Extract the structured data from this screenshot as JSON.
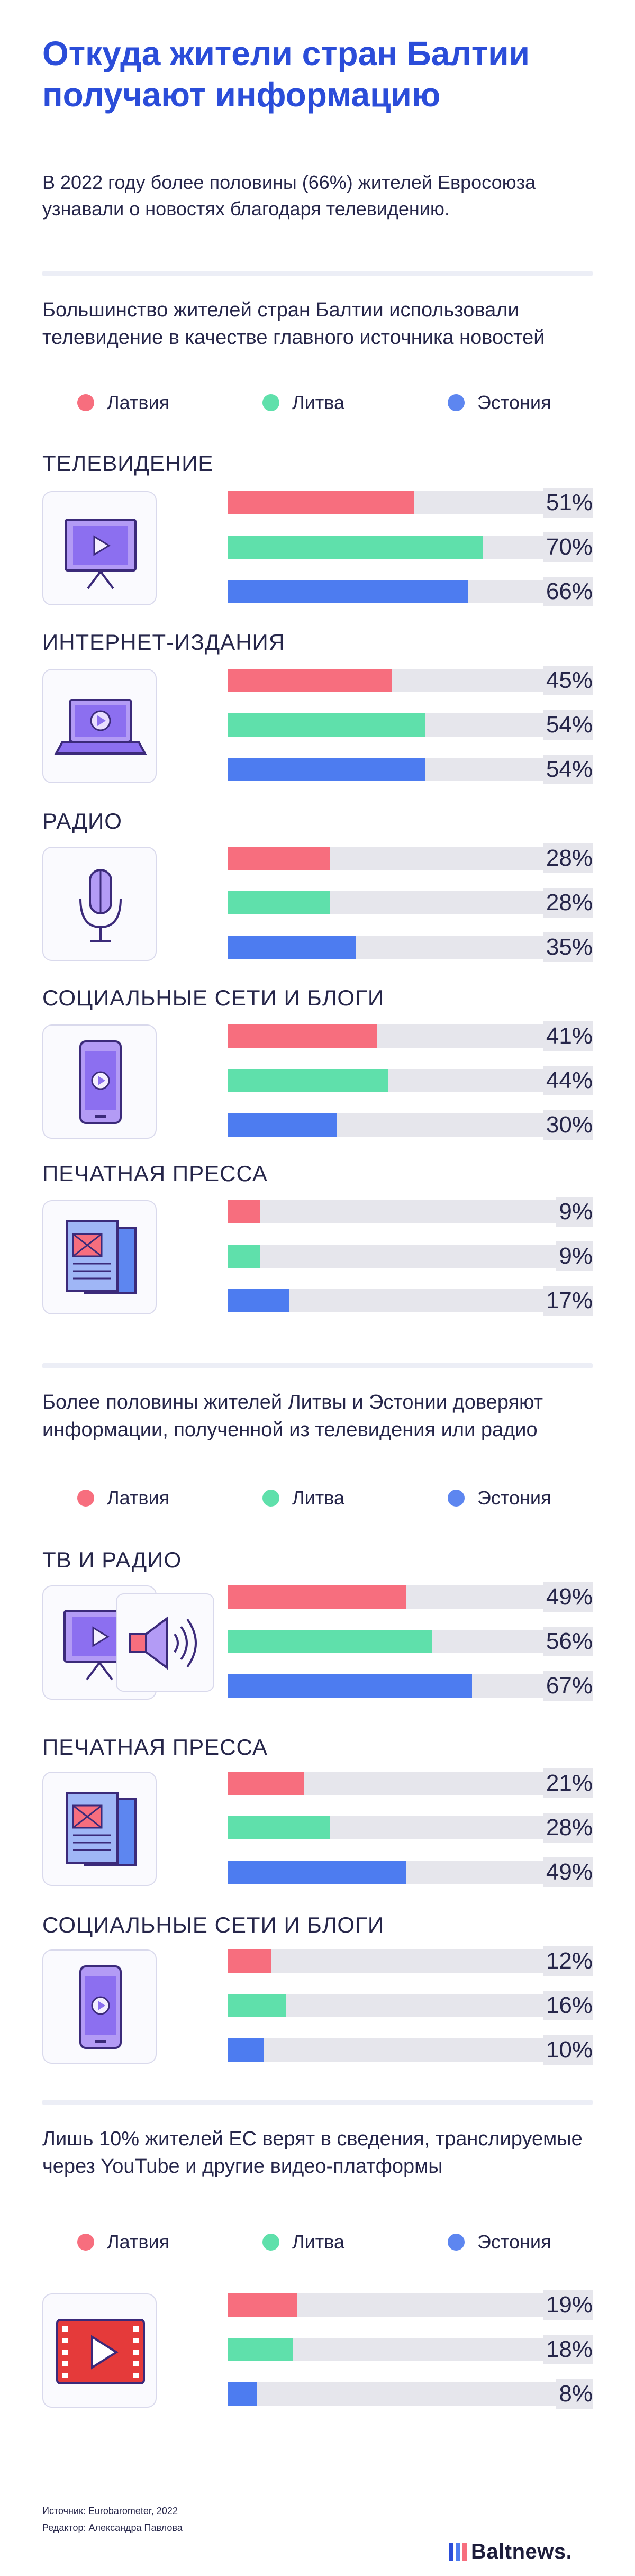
{
  "title": "Откуда жители стран Балтии получают информацию",
  "lead": "В 2022 году более половины (66%) жителей Евросоюза узнавали о новостях благодаря телевидению.",
  "legend": {
    "latvia": "Латвия",
    "lithuania": "Литва",
    "estonia": "Эстония"
  },
  "colors": {
    "latvia": "#f76e7e",
    "lithuania": "#5fe0ab",
    "estonia": "#4d7cf0",
    "title": "#2b4dd9"
  },
  "sections": [
    {
      "heading": "Большинство жителей стран Балтии использовали телевидение в качестве главного источника новостей"
    },
    {
      "heading": "Более половины жителей Литвы и Эстонии доверяют информации, полученной из телевидения или радио"
    },
    {
      "heading": "Лишь 10% жителей ЕС верят в сведения, транслируемые через YouTube и другие видео-платформы"
    }
  ],
  "chart_data": [
    {
      "type": "bar",
      "title": "Большинство жителей стран Балтии использовали телевидение в качестве главного источника новостей",
      "categories": [
        "ТЕЛЕВИДЕНИЕ",
        "ИНТЕРНЕТ-ИЗДАНИЯ",
        "РАДИО",
        "СОЦИАЛЬНЫЕ СЕТИ И БЛОГИ",
        "ПЕЧАТНАЯ ПРЕССА"
      ],
      "series": [
        {
          "name": "Латвия",
          "values": [
            51,
            45,
            28,
            41,
            9
          ]
        },
        {
          "name": "Литва",
          "values": [
            70,
            54,
            28,
            44,
            9
          ]
        },
        {
          "name": "Эстония",
          "values": [
            66,
            54,
            35,
            30,
            17
          ]
        }
      ],
      "unit": "%",
      "xlim": [
        0,
        100
      ]
    },
    {
      "type": "bar",
      "title": "Более половины жителей Литвы и Эстонии доверяют информации, полученной из телевидения или радио",
      "categories": [
        "ТВ И РАДИО",
        "ПЕЧАТНАЯ ПРЕССА",
        "СОЦИАЛЬНЫЕ СЕТИ И БЛОГИ"
      ],
      "series": [
        {
          "name": "Латвия",
          "values": [
            49,
            21,
            12
          ]
        },
        {
          "name": "Литва",
          "values": [
            56,
            28,
            16
          ]
        },
        {
          "name": "Эстония",
          "values": [
            67,
            49,
            10
          ]
        }
      ],
      "unit": "%",
      "xlim": [
        0,
        100
      ]
    },
    {
      "type": "bar",
      "title": "Лишь 10% жителей ЕС верят в сведения, транслируемые через YouTube и другие видео-платформы",
      "categories": [
        ""
      ],
      "series": [
        {
          "name": "Латвия",
          "values": [
            19
          ]
        },
        {
          "name": "Литва",
          "values": [
            18
          ]
        },
        {
          "name": "Эстония",
          "values": [
            8
          ]
        }
      ],
      "unit": "%",
      "xlim": [
        0,
        100
      ]
    }
  ],
  "footer": {
    "source": "Источник: Eurobarometer, 2022",
    "editor": "Редактор: Александра Павлова",
    "brand": "Baltnews."
  }
}
